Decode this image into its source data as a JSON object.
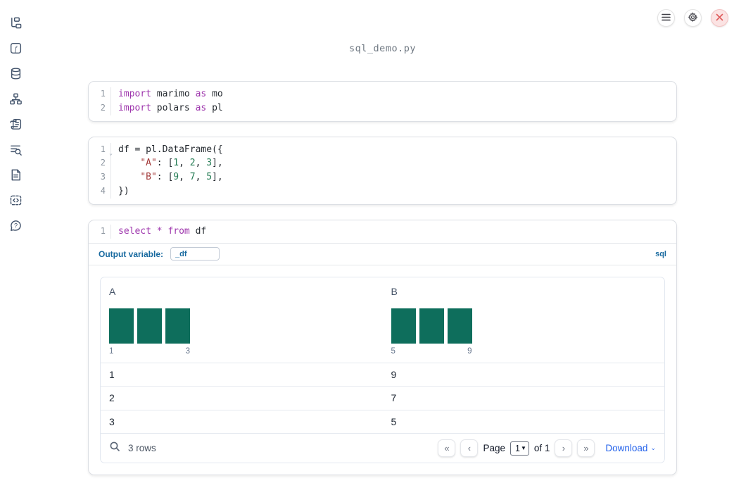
{
  "header": {
    "filename": "sql_demo.py",
    "controls": [
      {
        "icon": "hamburger-menu-icon",
        "label": "notebook-menu"
      },
      {
        "icon": "gear-icon",
        "label": "settings"
      },
      {
        "icon": "close-icon",
        "label": "shutdown"
      }
    ]
  },
  "sidebar": {
    "items": [
      {
        "icon": "file-tree-icon",
        "label": "file-explorer"
      },
      {
        "icon": "functions-icon",
        "label": "variables"
      },
      {
        "icon": "database-icon",
        "label": "datasources"
      },
      {
        "icon": "dependency-graph-icon",
        "label": "dependencies"
      },
      {
        "icon": "scratchpad-icon",
        "label": "scratchpad"
      },
      {
        "icon": "logs-search-icon",
        "label": "logs"
      },
      {
        "icon": "document-icon",
        "label": "documentation"
      },
      {
        "icon": "snippets-icon",
        "label": "snippets"
      },
      {
        "icon": "help-bubble-icon",
        "label": "help"
      }
    ]
  },
  "cells": [
    {
      "type": "python",
      "lines": [
        {
          "number": "1",
          "tokens": [
            {
              "t": "kw",
              "v": "import"
            },
            {
              "t": "pl",
              "v": " marimo "
            },
            {
              "t": "kw",
              "v": "as"
            },
            {
              "t": "pl",
              "v": " mo"
            }
          ]
        },
        {
          "number": "2",
          "tokens": [
            {
              "t": "kw",
              "v": "import"
            },
            {
              "t": "pl",
              "v": " polars "
            },
            {
              "t": "kw",
              "v": "as"
            },
            {
              "t": "pl",
              "v": " pl"
            }
          ]
        }
      ]
    },
    {
      "type": "python",
      "lines": [
        {
          "number": "1",
          "fold": true,
          "tokens": [
            {
              "t": "pl",
              "v": "df = pl.DataFrame({"
            }
          ]
        },
        {
          "number": "2",
          "tokens": [
            {
              "t": "pl",
              "v": "    "
            },
            {
              "t": "str",
              "v": "\"A\""
            },
            {
              "t": "pl",
              "v": ": ["
            },
            {
              "t": "num",
              "v": "1"
            },
            {
              "t": "pl",
              "v": ", "
            },
            {
              "t": "num",
              "v": "2"
            },
            {
              "t": "pl",
              "v": ", "
            },
            {
              "t": "num",
              "v": "3"
            },
            {
              "t": "pl",
              "v": "],"
            }
          ]
        },
        {
          "number": "3",
          "tokens": [
            {
              "t": "pl",
              "v": "    "
            },
            {
              "t": "str",
              "v": "\"B\""
            },
            {
              "t": "pl",
              "v": ": ["
            },
            {
              "t": "num",
              "v": "9"
            },
            {
              "t": "pl",
              "v": ", "
            },
            {
              "t": "num",
              "v": "7"
            },
            {
              "t": "pl",
              "v": ", "
            },
            {
              "t": "num",
              "v": "5"
            },
            {
              "t": "pl",
              "v": "],"
            }
          ]
        },
        {
          "number": "4",
          "tokens": [
            {
              "t": "pl",
              "v": "})"
            }
          ]
        }
      ]
    },
    {
      "type": "sql",
      "lines": [
        {
          "number": "1",
          "tokens": [
            {
              "t": "kw",
              "v": "select"
            },
            {
              "t": "pl",
              "v": " "
            },
            {
              "t": "kw",
              "v": "*"
            },
            {
              "t": "pl",
              "v": " "
            },
            {
              "t": "kw",
              "v": "from"
            },
            {
              "t": "pl",
              "v": " df"
            }
          ]
        }
      ],
      "output_variable_label": "Output variable:",
      "output_variable_value": "_df",
      "language_badge": "sql"
    }
  ],
  "table": {
    "columns": [
      {
        "header": "A",
        "histogram": {
          "bars": 3,
          "min_label": "1",
          "max_label": "3"
        }
      },
      {
        "header": "B",
        "histogram": {
          "bars": 3,
          "min_label": "5",
          "max_label": "9"
        }
      }
    ],
    "rows": [
      [
        "1",
        "9"
      ],
      [
        "2",
        "7"
      ],
      [
        "3",
        "5"
      ]
    ],
    "footer": {
      "row_count": "3 rows",
      "page_label": "Page",
      "page_value": "1",
      "of_label": "of 1",
      "download_label": "Download"
    }
  },
  "colors": {
    "keyword": "#9d34ac",
    "string": "#a33a3a",
    "number": "#217a52",
    "histogram_bar": "#0e6e5c",
    "accent_blue": "#17699f",
    "link_blue": "#2563eb",
    "shutdown_red": "#de5b5b"
  }
}
